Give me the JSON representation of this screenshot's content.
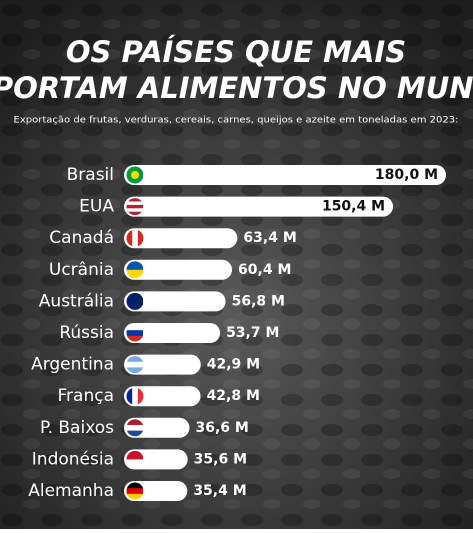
{
  "chart_data": {
    "type": "bar",
    "orientation": "horizontal",
    "title": [
      "OS PAÍSES QUE MAIS",
      "EXPORTAM ALIMENTOS NO MUNDO"
    ],
    "subtitle": "Exportação de frutas, verduras, cereais, carnes, queijos e azeite em toneladas em 2023:",
    "categories": [
      "Brasil",
      "EUA",
      "Canadá",
      "Ucrânia",
      "Austrália",
      "Rússia",
      "Argentina",
      "França",
      "P. Baixos",
      "Indonésia",
      "Alemanha"
    ],
    "values": [
      180.0,
      150.4,
      63.4,
      60.4,
      56.8,
      53.7,
      42.9,
      42.8,
      36.6,
      35.6,
      35.4
    ],
    "value_labels": [
      "180,0 M",
      "150,4 M",
      "63,4 M",
      "60,4 M",
      "56,8 M",
      "53,7 M",
      "42,9 M",
      "42,8 M",
      "36,6 M",
      "35,6 M",
      "35,4 M"
    ],
    "color": "#ffffff"
  }
}
